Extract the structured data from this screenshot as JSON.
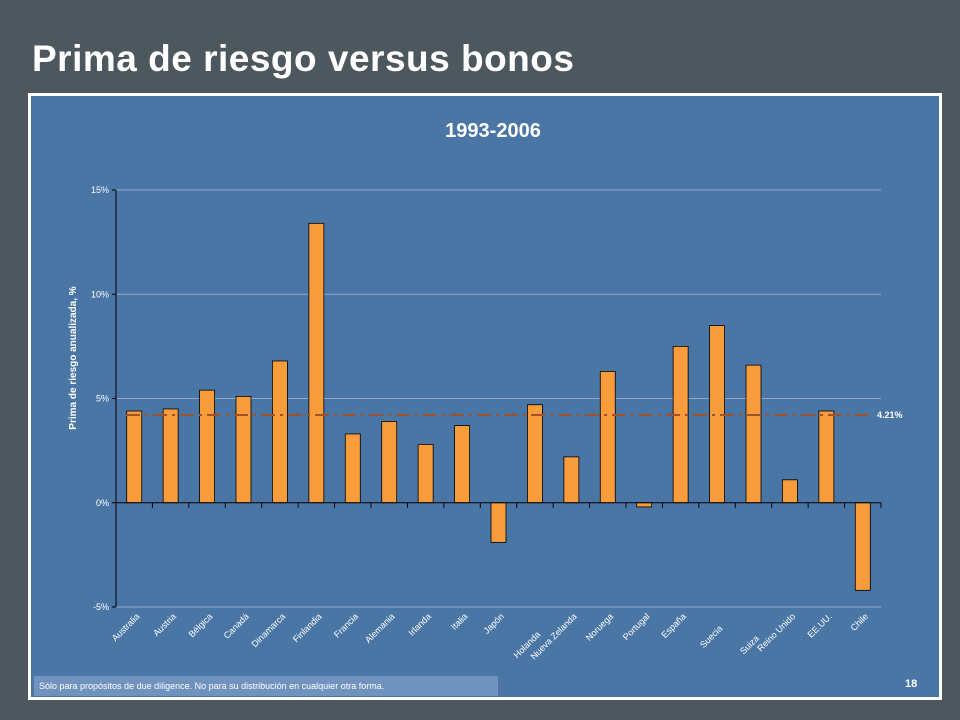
{
  "slide": {
    "title": "Prima de riesgo versus bonos",
    "disclaimer": "Sólo para propósitos de due diligence. No para su distribución en cualquier otra forma.",
    "page_number": "18"
  },
  "chart_data": {
    "type": "bar",
    "title": "1993-2006",
    "xlabel": "",
    "ylabel": "Prima de riesgo anualizada, %",
    "ylim": [
      -5,
      15
    ],
    "yticks": [
      -5,
      0,
      5,
      10,
      15
    ],
    "ytick_labels": [
      "-5%",
      "0%",
      "5%",
      "10%",
      "15%"
    ],
    "grid": true,
    "categories": [
      "Australia",
      "Austria",
      "Bélgica",
      "Canadá",
      "Dinamarca",
      "Finlandia",
      "Francia",
      "Alemania",
      "Irlanda",
      "Italia",
      "Japón",
      "Holanda",
      "Nueva Zelanda",
      "Noruega",
      "Portugal",
      "España",
      "Suecia",
      "Suiza",
      "Reino Unido",
      "EE.UU.",
      "Chile"
    ],
    "values": [
      4.4,
      4.5,
      5.4,
      5.1,
      6.8,
      13.4,
      3.3,
      3.9,
      2.8,
      3.7,
      -1.9,
      4.7,
      2.2,
      6.3,
      -0.2,
      7.5,
      8.5,
      6.6,
      1.1,
      4.4,
      -4.2
    ],
    "reference_line": {
      "value": 4.21,
      "label": "4.21%",
      "color": "#a0522d"
    },
    "colors": {
      "bar": "#f99c3b",
      "bar_stroke": "#000000",
      "grid": "#8eabcc",
      "axis": "#000000",
      "text": "#ffffff"
    }
  }
}
